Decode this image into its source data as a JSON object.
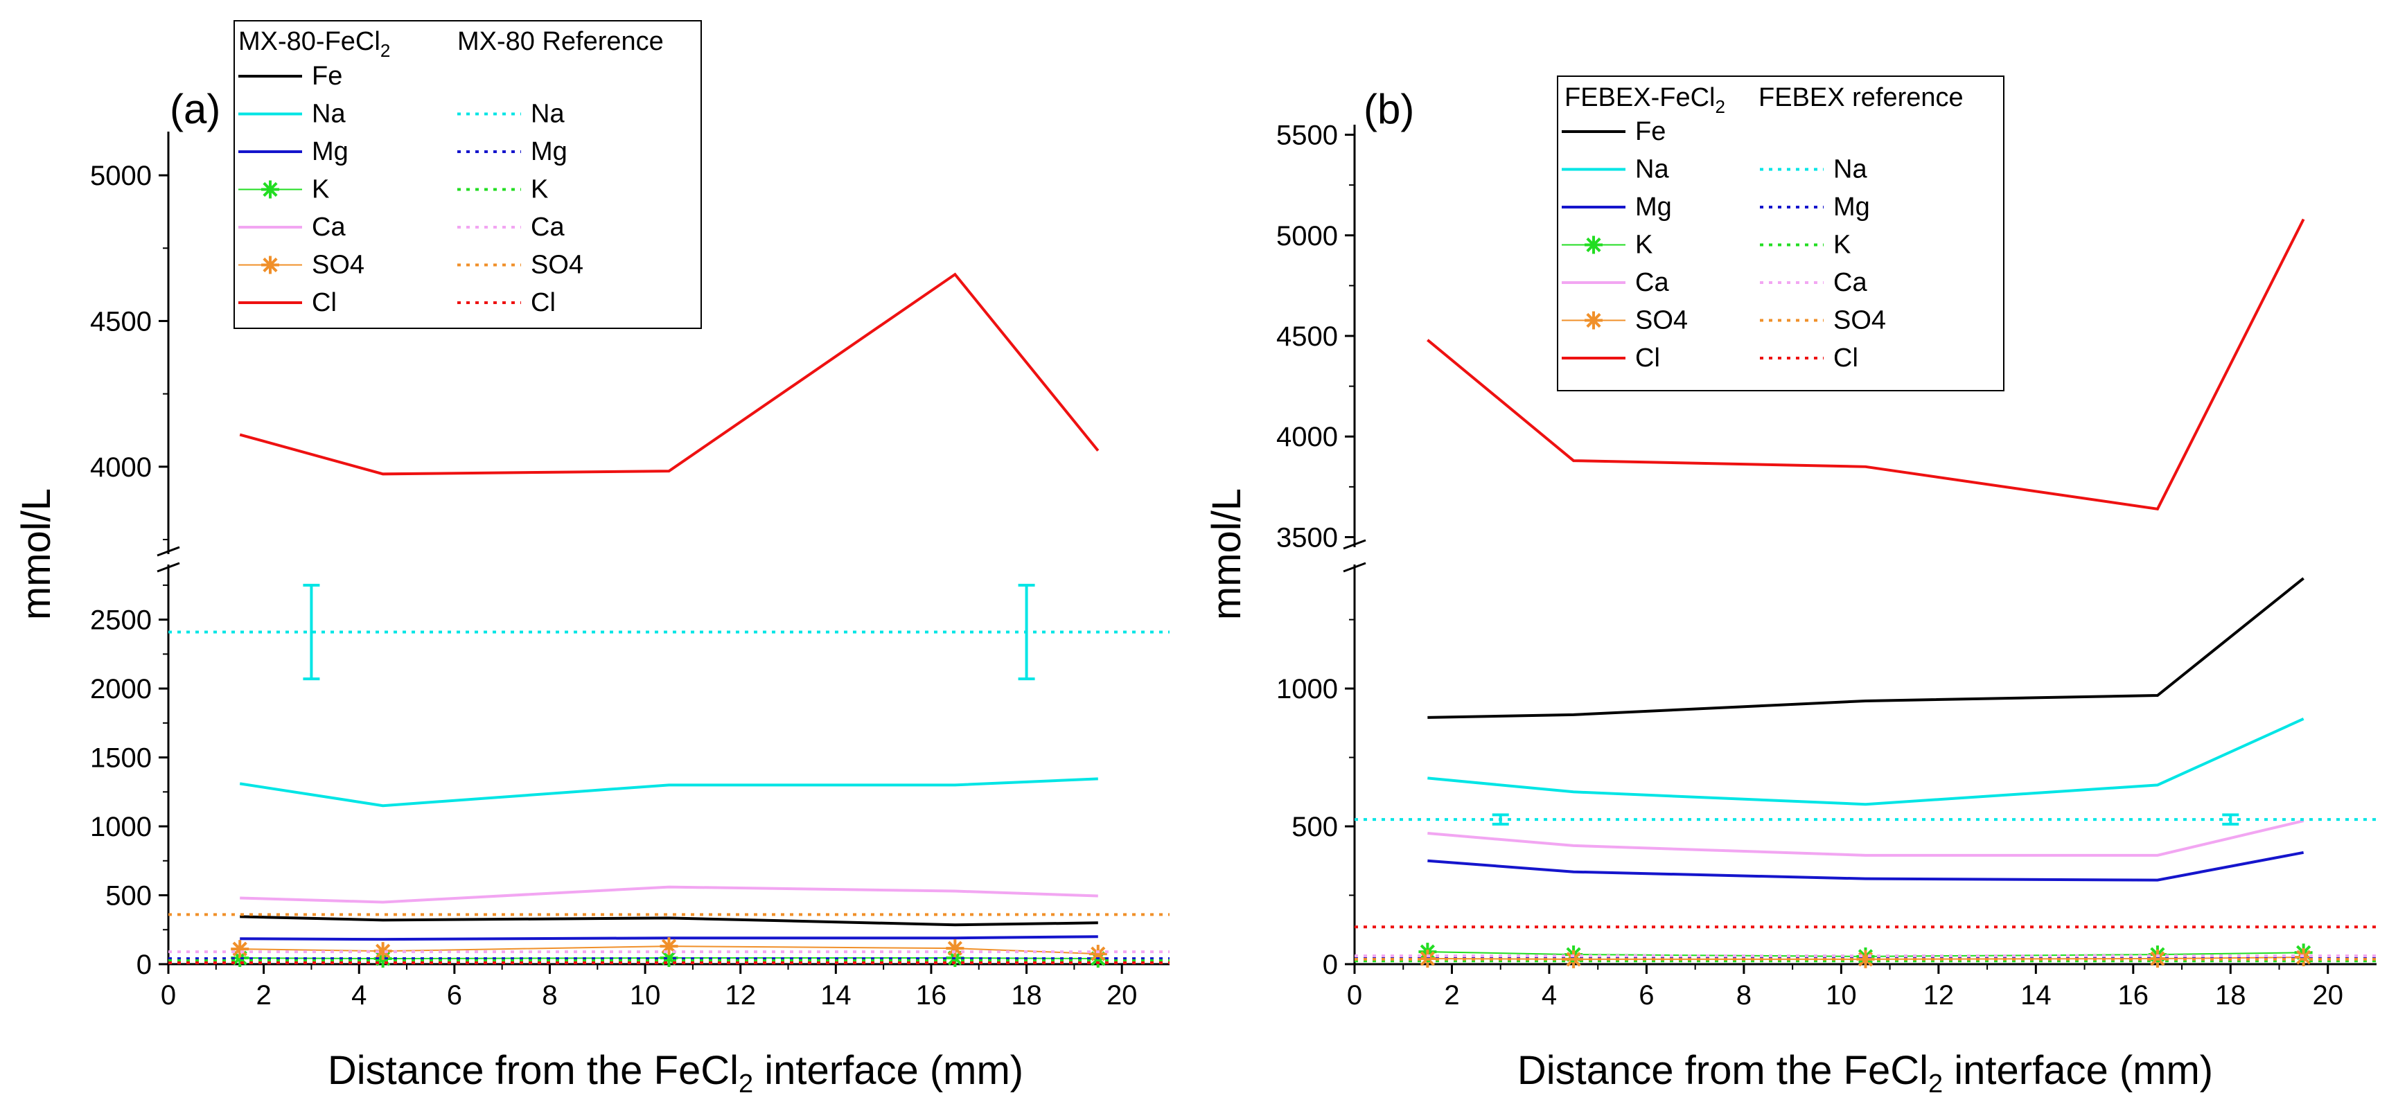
{
  "figure": {
    "panels": [
      {
        "id": "a",
        "label": "(a)",
        "xlabel_pre": "Distance from the FeCl",
        "xlabel_sub": "2",
        "xlabel_post": " interface (mm)",
        "ylabel": "mmol/L",
        "legend_header_1_pre": "MX-80-FeCl",
        "legend_header_1_sub": "2",
        "legend_header_2": "MX-80 Reference"
      },
      {
        "id": "b",
        "label": "(b)",
        "xlabel_pre": "Distance from the FeCl",
        "xlabel_sub": "2",
        "xlabel_post": " interface (mm)",
        "ylabel": "mmol/L",
        "legend_header_1_pre": "FEBEX-FeCl",
        "legend_header_1_sub": "2",
        "legend_header_2": "FEBEX reference"
      }
    ]
  },
  "colors": {
    "Fe": "#000000",
    "Na": "#00e5e5",
    "Mg": "#1515cc",
    "K": "#22dd22",
    "Ca": "#f2a6f2",
    "SO4": "#f0902a",
    "Cl": "#ee1111"
  },
  "chart_data": [
    {
      "type": "line",
      "title": "(a)",
      "xlabel": "Distance from the FeCl2 interface (mm)",
      "ylabel": "mmol/L",
      "xlim": [
        0,
        21
      ],
      "xticks": [
        0,
        2,
        4,
        6,
        8,
        10,
        12,
        14,
        16,
        18,
        20
      ],
      "broken_y_axis": {
        "lower": {
          "ylim": [
            0,
            2900
          ],
          "ticks": [
            0,
            500,
            1000,
            1500,
            2000,
            2500
          ]
        },
        "upper": {
          "ylim": [
            3700,
            5150
          ],
          "ticks": [
            4000,
            4500,
            5000
          ]
        }
      },
      "legend_headers": [
        "MX-80-FeCl2",
        "MX-80 Reference"
      ],
      "series": [
        {
          "name": "Fe",
          "group": "MX-80-FeCl2",
          "style": "solid",
          "x": [
            1.5,
            4.5,
            10.5,
            16.5,
            19.5
          ],
          "y": [
            345,
            320,
            335,
            285,
            300
          ]
        },
        {
          "name": "Na",
          "group": "MX-80-FeCl2",
          "style": "solid",
          "x": [
            1.5,
            4.5,
            10.5,
            16.5,
            19.5
          ],
          "y": [
            1310,
            1150,
            1300,
            1300,
            1345
          ]
        },
        {
          "name": "Mg",
          "group": "MX-80-FeCl2",
          "style": "solid",
          "x": [
            1.5,
            4.5,
            10.5,
            16.5,
            19.5
          ],
          "y": [
            185,
            180,
            190,
            190,
            200
          ]
        },
        {
          "name": "K",
          "group": "MX-80-FeCl2",
          "style": "star",
          "x": [
            1.5,
            4.5,
            10.5,
            16.5,
            19.5
          ],
          "y": [
            45,
            40,
            45,
            45,
            40
          ]
        },
        {
          "name": "Ca",
          "group": "MX-80-FeCl2",
          "style": "solid",
          "x": [
            1.5,
            4.5,
            10.5,
            16.5,
            19.5
          ],
          "y": [
            480,
            450,
            560,
            530,
            495
          ]
        },
        {
          "name": "SO4",
          "group": "MX-80-FeCl2",
          "style": "star",
          "x": [
            1.5,
            4.5,
            10.5,
            16.5,
            19.5
          ],
          "y": [
            110,
            95,
            130,
            115,
            75
          ]
        },
        {
          "name": "Cl",
          "group": "MX-80-FeCl2",
          "style": "solid",
          "x": [
            1.5,
            4.5,
            10.5,
            16.5,
            19.5
          ],
          "y": [
            4110,
            3975,
            3985,
            4660,
            4055
          ]
        },
        {
          "name": "Na",
          "group": "MX-80 Reference",
          "style": "dotted",
          "y": 2410,
          "errorbars": [
            {
              "x": 3,
              "low": 2070,
              "high": 2750
            },
            {
              "x": 18,
              "low": 2070,
              "high": 2750
            }
          ]
        },
        {
          "name": "Mg",
          "group": "MX-80 Reference",
          "style": "dotted",
          "y": 40
        },
        {
          "name": "K",
          "group": "MX-80 Reference",
          "style": "dotted",
          "y": 25
        },
        {
          "name": "Ca",
          "group": "MX-80 Reference",
          "style": "dotted",
          "y": 90
        },
        {
          "name": "SO4",
          "group": "MX-80 Reference",
          "style": "dotted",
          "y": 360
        },
        {
          "name": "Cl",
          "group": "MX-80 Reference",
          "style": "dotted",
          "y": 10
        }
      ]
    },
    {
      "type": "line",
      "title": "(b)",
      "xlabel": "Distance from the FeCl2 interface (mm)",
      "ylabel": "mmol/L",
      "xlim": [
        0,
        21
      ],
      "xticks": [
        0,
        2,
        4,
        6,
        8,
        10,
        12,
        14,
        16,
        18,
        20
      ],
      "broken_y_axis": {
        "lower": {
          "ylim": [
            0,
            1450
          ],
          "ticks": [
            0,
            500,
            1000
          ]
        },
        "upper": {
          "ylim": [
            3450,
            5550
          ],
          "ticks": [
            3500,
            4000,
            4500,
            5000,
            5500
          ]
        }
      },
      "legend_headers": [
        "FEBEX-FeCl2",
        "FEBEX reference"
      ],
      "series": [
        {
          "name": "Fe",
          "group": "FEBEX-FeCl2",
          "style": "solid",
          "x": [
            1.5,
            4.5,
            10.5,
            16.5,
            19.5
          ],
          "y": [
            895,
            905,
            955,
            975,
            1400
          ]
        },
        {
          "name": "Na",
          "group": "FEBEX-FeCl2",
          "style": "solid",
          "x": [
            1.5,
            4.5,
            10.5,
            16.5,
            19.5
          ],
          "y": [
            675,
            625,
            580,
            650,
            890
          ]
        },
        {
          "name": "Mg",
          "group": "FEBEX-FeCl2",
          "style": "solid",
          "x": [
            1.5,
            4.5,
            10.5,
            16.5,
            19.5
          ],
          "y": [
            375,
            335,
            310,
            305,
            405
          ]
        },
        {
          "name": "K",
          "group": "FEBEX-FeCl2",
          "style": "star",
          "x": [
            1.5,
            4.5,
            10.5,
            16.5,
            19.5
          ],
          "y": [
            45,
            35,
            28,
            35,
            42
          ]
        },
        {
          "name": "Ca",
          "group": "FEBEX-FeCl2",
          "style": "solid",
          "x": [
            1.5,
            4.5,
            10.5,
            16.5,
            19.5
          ],
          "y": [
            475,
            430,
            395,
            395,
            520
          ]
        },
        {
          "name": "SO4",
          "group": "FEBEX-FeCl2",
          "style": "star",
          "x": [
            1.5,
            4.5,
            10.5,
            16.5,
            19.5
          ],
          "y": [
            20,
            18,
            18,
            20,
            25
          ]
        },
        {
          "name": "Cl",
          "group": "FEBEX-FeCl2",
          "style": "solid",
          "x": [
            1.5,
            4.5,
            10.5,
            16.5,
            19.5
          ],
          "y": [
            4480,
            3880,
            3850,
            3640,
            5080
          ]
        },
        {
          "name": "Na",
          "group": "FEBEX reference",
          "style": "dotted",
          "y": 525,
          "errorbars": [
            {
              "x": 3,
              "low": 508,
              "high": 542
            },
            {
              "x": 18,
              "low": 508,
              "high": 542
            }
          ]
        },
        {
          "name": "Mg",
          "group": "FEBEX reference",
          "style": "dotted",
          "y": 25
        },
        {
          "name": "K",
          "group": "FEBEX reference",
          "style": "dotted",
          "y": 12
        },
        {
          "name": "Ca",
          "group": "FEBEX reference",
          "style": "dotted",
          "y": 30
        },
        {
          "name": "SO4",
          "group": "FEBEX reference",
          "style": "dotted",
          "y": 18
        },
        {
          "name": "Cl",
          "group": "FEBEX reference",
          "style": "dotted",
          "y": 135
        }
      ]
    }
  ]
}
